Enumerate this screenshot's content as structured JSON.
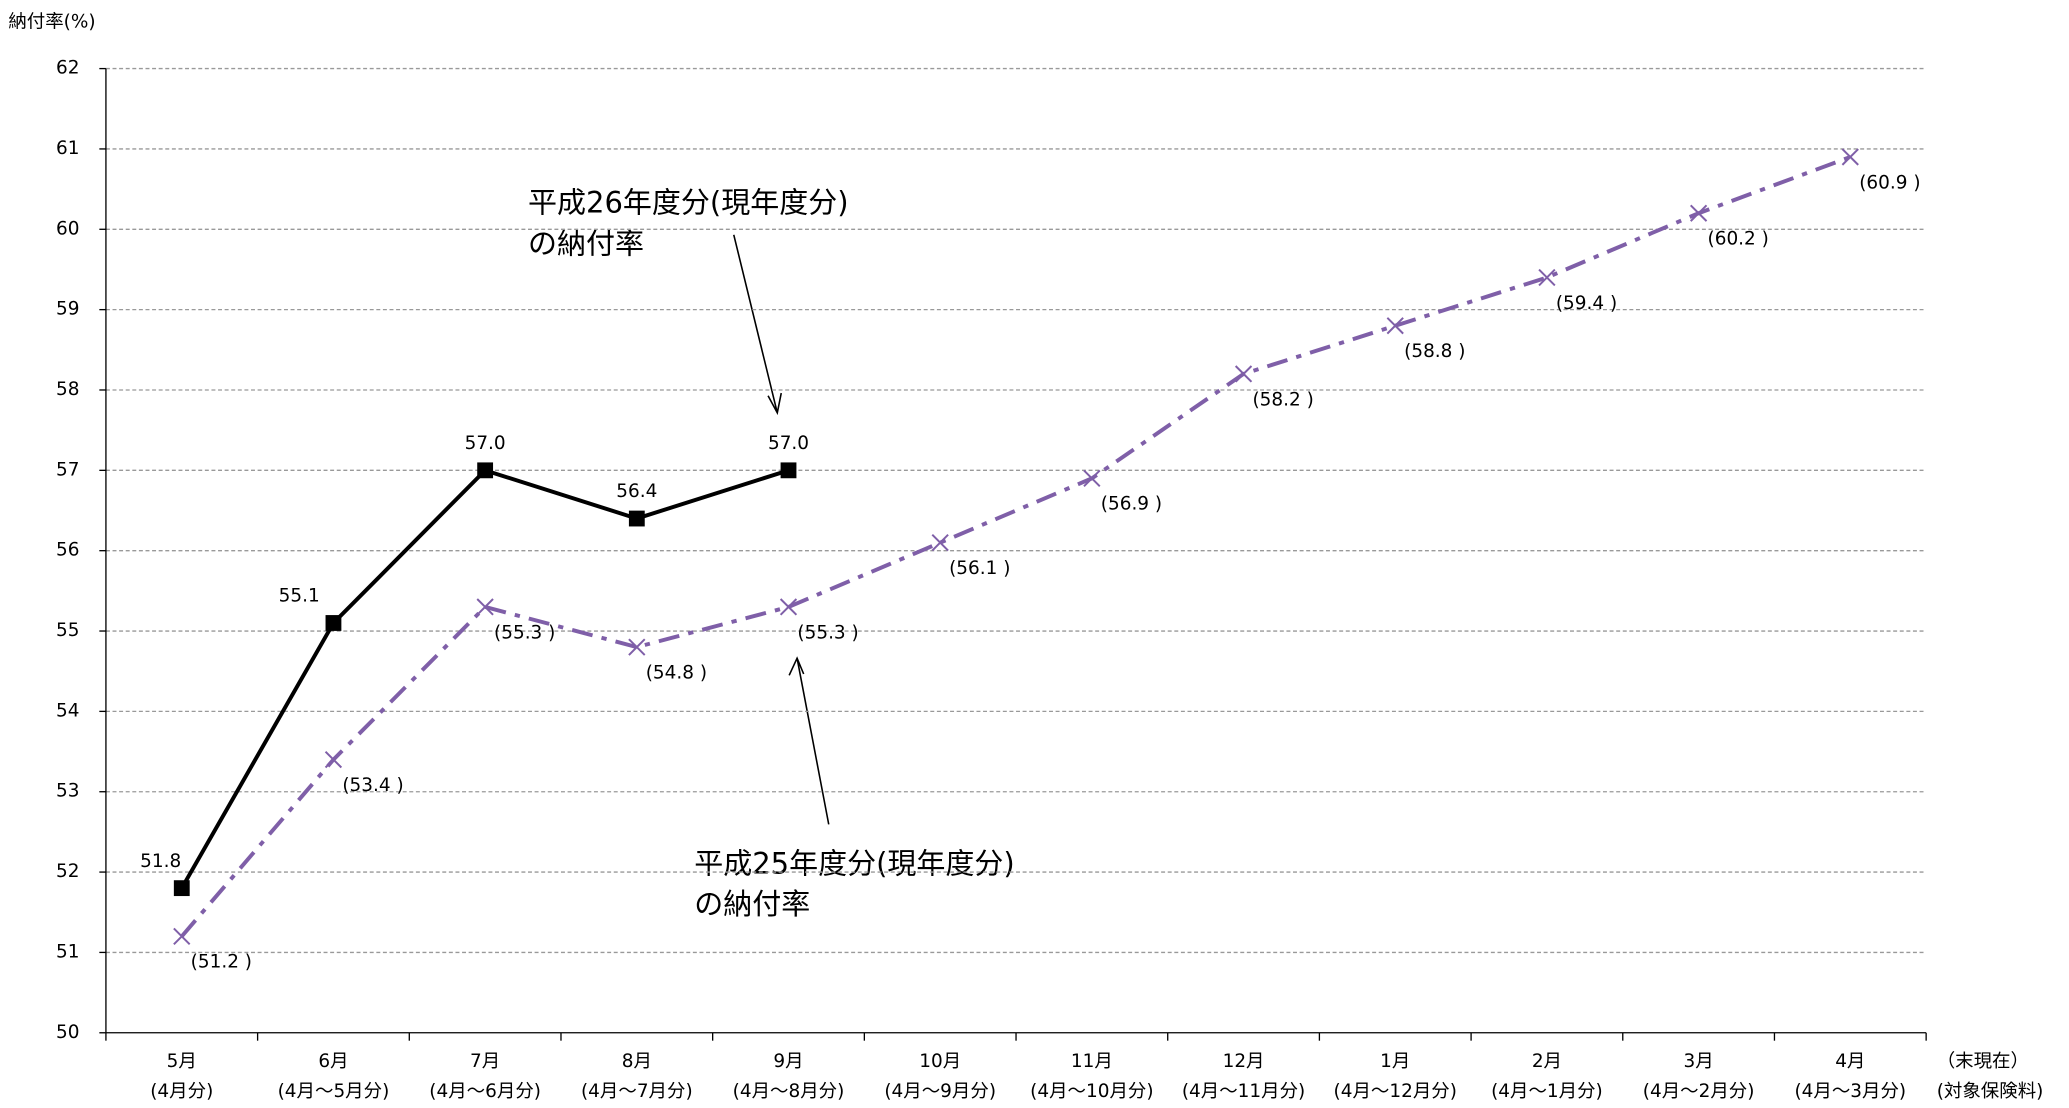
{
  "chart_data": {
    "type": "line",
    "y_label": "納付率(%)",
    "categories": [
      "5月",
      "6月",
      "7月",
      "8月",
      "9月",
      "10月",
      "11月",
      "12月",
      "1月",
      "2月",
      "3月",
      "4月"
    ],
    "category_sublabels": [
      "(4月分)",
      "(4月～5月分)",
      "(4月～6月分)",
      "(4月～7月分)",
      "(4月～8月分)",
      "(4月～9月分)",
      "(4月～10月分)",
      "(4月～11月分)",
      "(4月～12月分)",
      "(4月～1月分)",
      "(4月～2月分)",
      "(4月～3月分)"
    ],
    "x_axis_note": [
      "（末現在）",
      "(対象保険料)"
    ],
    "series": [
      {
        "color": "#000000",
        "values": [
          51.8,
          55.1,
          57.0,
          56.4,
          57.0,
          null,
          null,
          null,
          null,
          null,
          null,
          null
        ],
        "value_labels": [
          "51.8",
          "55.1",
          "57.0",
          "56.4",
          "57.0",
          null,
          null,
          null,
          null,
          null,
          null,
          null
        ]
      },
      {
        "color": "#7f5fa8",
        "values": [
          51.2,
          53.4,
          55.3,
          54.8,
          55.3,
          56.1,
          56.9,
          58.2,
          58.8,
          59.4,
          60.2,
          60.9
        ],
        "value_labels": [
          "(51.2 )",
          "(53.4 )",
          "(55.3 )",
          "(54.8 )",
          "(55.3 )",
          "(56.1 )",
          "(56.9 )",
          "(58.2 )",
          "(58.8 )",
          "(59.4 )",
          "(60.2 )",
          "(60.9 )"
        ]
      }
    ],
    "annotations": [
      [
        "平成26年度分(現年度分)",
        "の納付率"
      ],
      [
        "平成25年度分(現年度分)",
        "の納付率"
      ]
    ],
    "ylim": [
      50,
      62
    ],
    "yticks": [
      50,
      51,
      52,
      53,
      54,
      55,
      56,
      57,
      58,
      59,
      60,
      61,
      62
    ],
    "grid": true
  }
}
